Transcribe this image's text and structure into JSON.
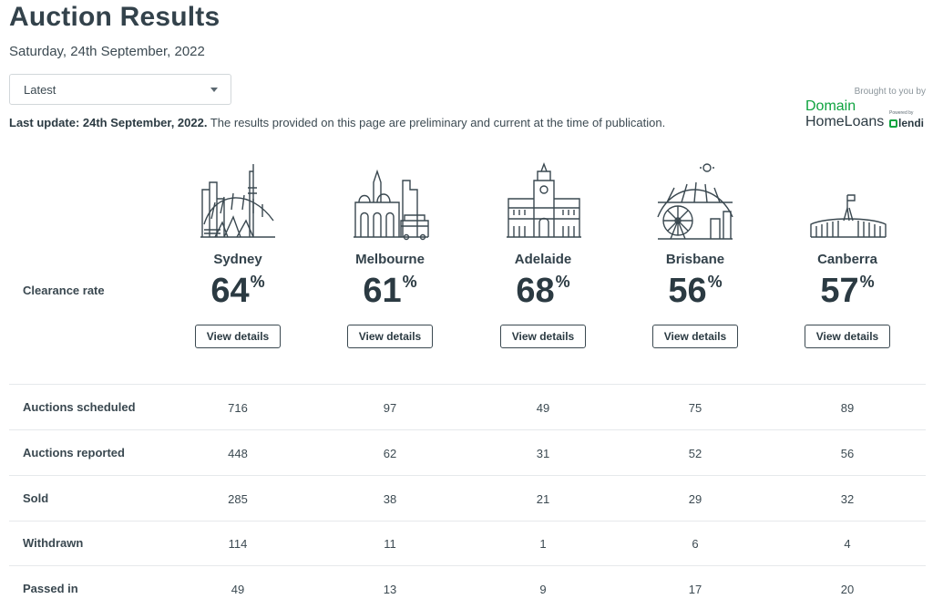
{
  "page": {
    "title": "Auction Results",
    "date": "Saturday, 24th September, 2022"
  },
  "filter": {
    "selected": "Latest"
  },
  "update": {
    "label": "Last update: 24th September, 2022.",
    "note": "The results provided on this page are preliminary and current at the time of publication."
  },
  "sponsor": {
    "note": "Brought to you by",
    "brand_line1": "Domain",
    "brand_line2": "HomeLoans",
    "powered": "Powered by",
    "partner": "lendi",
    "brand_color": "#0ea33f"
  },
  "clearance_label": "Clearance rate",
  "pct_symbol": "%",
  "details_label": "View details",
  "cities": [
    {
      "name": "Sydney",
      "rate": "64",
      "icon": "sydney-skyline-icon"
    },
    {
      "name": "Melbourne",
      "rate": "61",
      "icon": "melbourne-skyline-icon"
    },
    {
      "name": "Adelaide",
      "rate": "68",
      "icon": "adelaide-town-hall-icon"
    },
    {
      "name": "Brisbane",
      "rate": "56",
      "icon": "brisbane-bridge-icon"
    },
    {
      "name": "Canberra",
      "rate": "57",
      "icon": "canberra-parliament-icon"
    }
  ],
  "table": {
    "rows": [
      {
        "label": "Auctions scheduled",
        "values": [
          "716",
          "97",
          "49",
          "75",
          "89"
        ]
      },
      {
        "label": "Auctions reported",
        "values": [
          "448",
          "62",
          "31",
          "52",
          "56"
        ]
      },
      {
        "label": "Sold",
        "values": [
          "285",
          "38",
          "21",
          "29",
          "32"
        ]
      },
      {
        "label": "Withdrawn",
        "values": [
          "114",
          "11",
          "1",
          "6",
          "4"
        ]
      },
      {
        "label": "Passed in",
        "values": [
          "49",
          "13",
          "9",
          "17",
          "20"
        ]
      }
    ]
  }
}
